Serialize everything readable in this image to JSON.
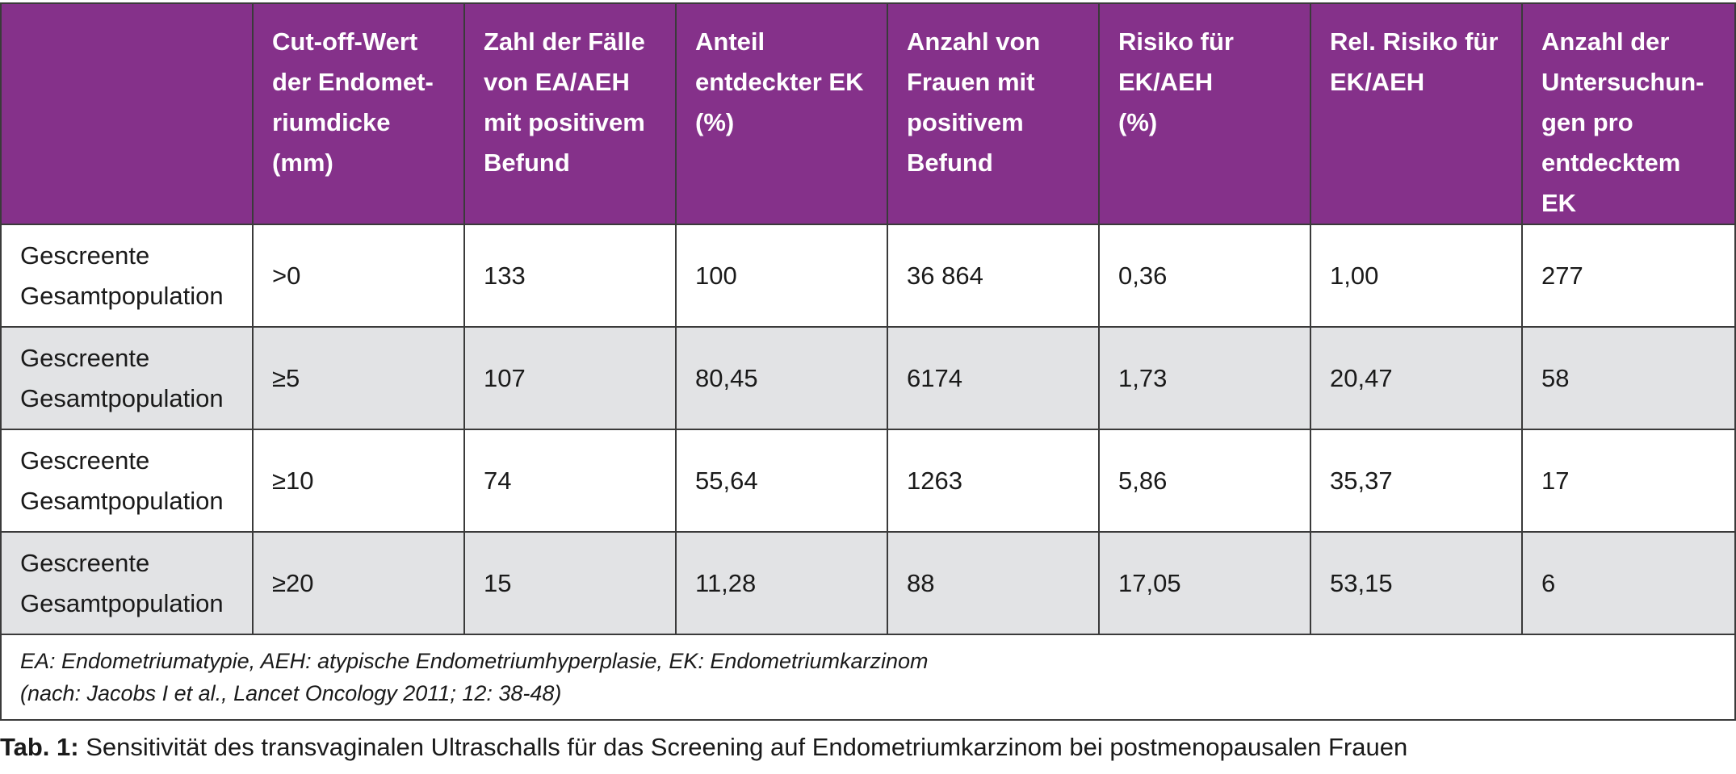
{
  "table": {
    "headers": [
      "",
      "Cut-off-Wert\nder Endomet-\nriumdicke\n(mm)",
      "Zahl der Fälle\nvon EA/AEH\nmit positivem\nBefund",
      "Anteil\nentdeckter EK\n(%)",
      "Anzahl von\nFrauen mit\npositivem\nBefund",
      "Risiko für\nEK/AEH\n(%)",
      "Rel. Risiko für\nEK/AEH",
      "Anzahl der\nUntersuchun-\ngen pro\nentdecktem\nEK"
    ],
    "rows": [
      [
        "Gescreente\nGesamtpopulation",
        ">0",
        "133",
        "100",
        "36 864",
        "0,36",
        "1,00",
        "277"
      ],
      [
        "Gescreente\nGesamtpopulation",
        "≥5",
        "107",
        "80,45",
        "6174",
        "1,73",
        "20,47",
        "58"
      ],
      [
        "Gescreente\nGesamtpopulation",
        "≥10",
        "74",
        "55,64",
        "1263",
        "5,86",
        "35,37",
        "17"
      ],
      [
        "Gescreente\nGesamtpopulation",
        "≥20",
        "15",
        "11,28",
        "88",
        "17,05",
        "53,15",
        "6"
      ]
    ],
    "footnote": {
      "line1": "EA: Endometriumatypie, AEH: atypische Endometriumhyperplasie, EK: Endometriumkarzinom",
      "line2": "(nach: Jacobs I et al., Lancet Oncology 2011; 12: 38-48)"
    }
  },
  "caption": {
    "label": "Tab. 1:",
    "text": " Sensitivität des transvaginalen Ultraschalls für das Screening auf Endometriumkarzinom bei postmenopausalen Frauen"
  },
  "colors": {
    "header_bg": "#85318a",
    "row_alt_bg": "#e2e3e5"
  }
}
